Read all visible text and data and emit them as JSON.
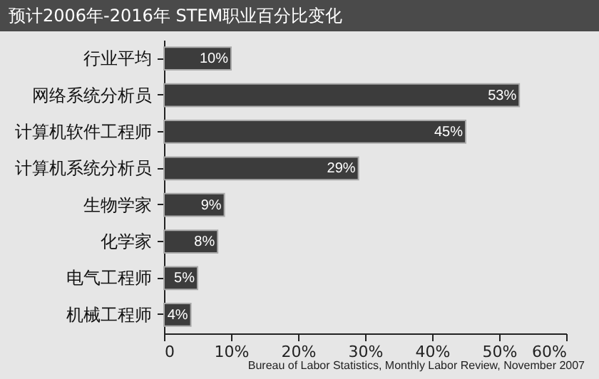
{
  "chart_data": {
    "type": "bar",
    "orientation": "horizontal",
    "title": "预计2006年-2016年 STEM职业百分比变化",
    "categories": [
      "行业平均",
      "网络系统分析员",
      "计算机软件工程师",
      "计算机系统分析员",
      "生物学家",
      "化学家",
      "电气工程师",
      "机械工程师"
    ],
    "values": [
      10,
      53,
      45,
      29,
      9,
      8,
      5,
      4
    ],
    "value_labels": [
      "10%",
      "53%",
      "45%",
      "29%",
      "9%",
      "8%",
      "5%",
      "4%"
    ],
    "color": "#3c3c3c",
    "xlim": [
      0,
      60
    ],
    "xticks": [
      0,
      {
        "value": 10,
        "label": "10%"
      },
      {
        "value": 20,
        "label": "20%"
      },
      {
        "value": 30,
        "label": "30%"
      },
      {
        "value": 40,
        "label": "40%"
      },
      {
        "value": 50,
        "label": "50%"
      },
      {
        "value": 60,
        "label": "60%"
      }
    ],
    "annotations": [
      "Bureau of Labor Statistics, Monthly Labor Review, November 2007"
    ],
    "grid": false
  }
}
